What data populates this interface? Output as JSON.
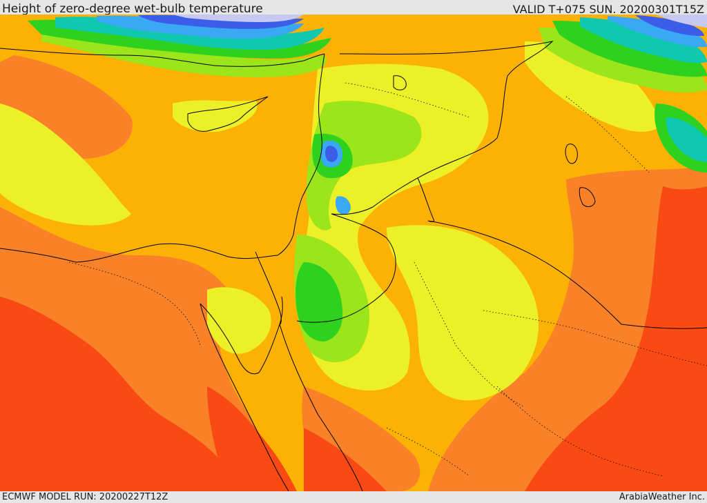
{
  "header": {
    "title": "Height of zero-degree wet-bulb temperature",
    "valid_time": "VALID T+075 SUN. 20200301T15Z"
  },
  "footer": {
    "model_run": "ECMWF MODEL RUN: 20200227T12Z",
    "brand": "ArabiaWeather Inc."
  },
  "colors": {
    "very_high": "#fa4a14",
    "high": "#f98128",
    "mid_high": "#fbb204",
    "mid": "#ecf027",
    "mid_low": "#9be51a",
    "low": "#2ed21e",
    "lower": "#10c8b0",
    "lowest": "#3aa8f5",
    "deep": "#3b5de8",
    "snow": "#c8c8f0",
    "borders": "#000000"
  }
}
